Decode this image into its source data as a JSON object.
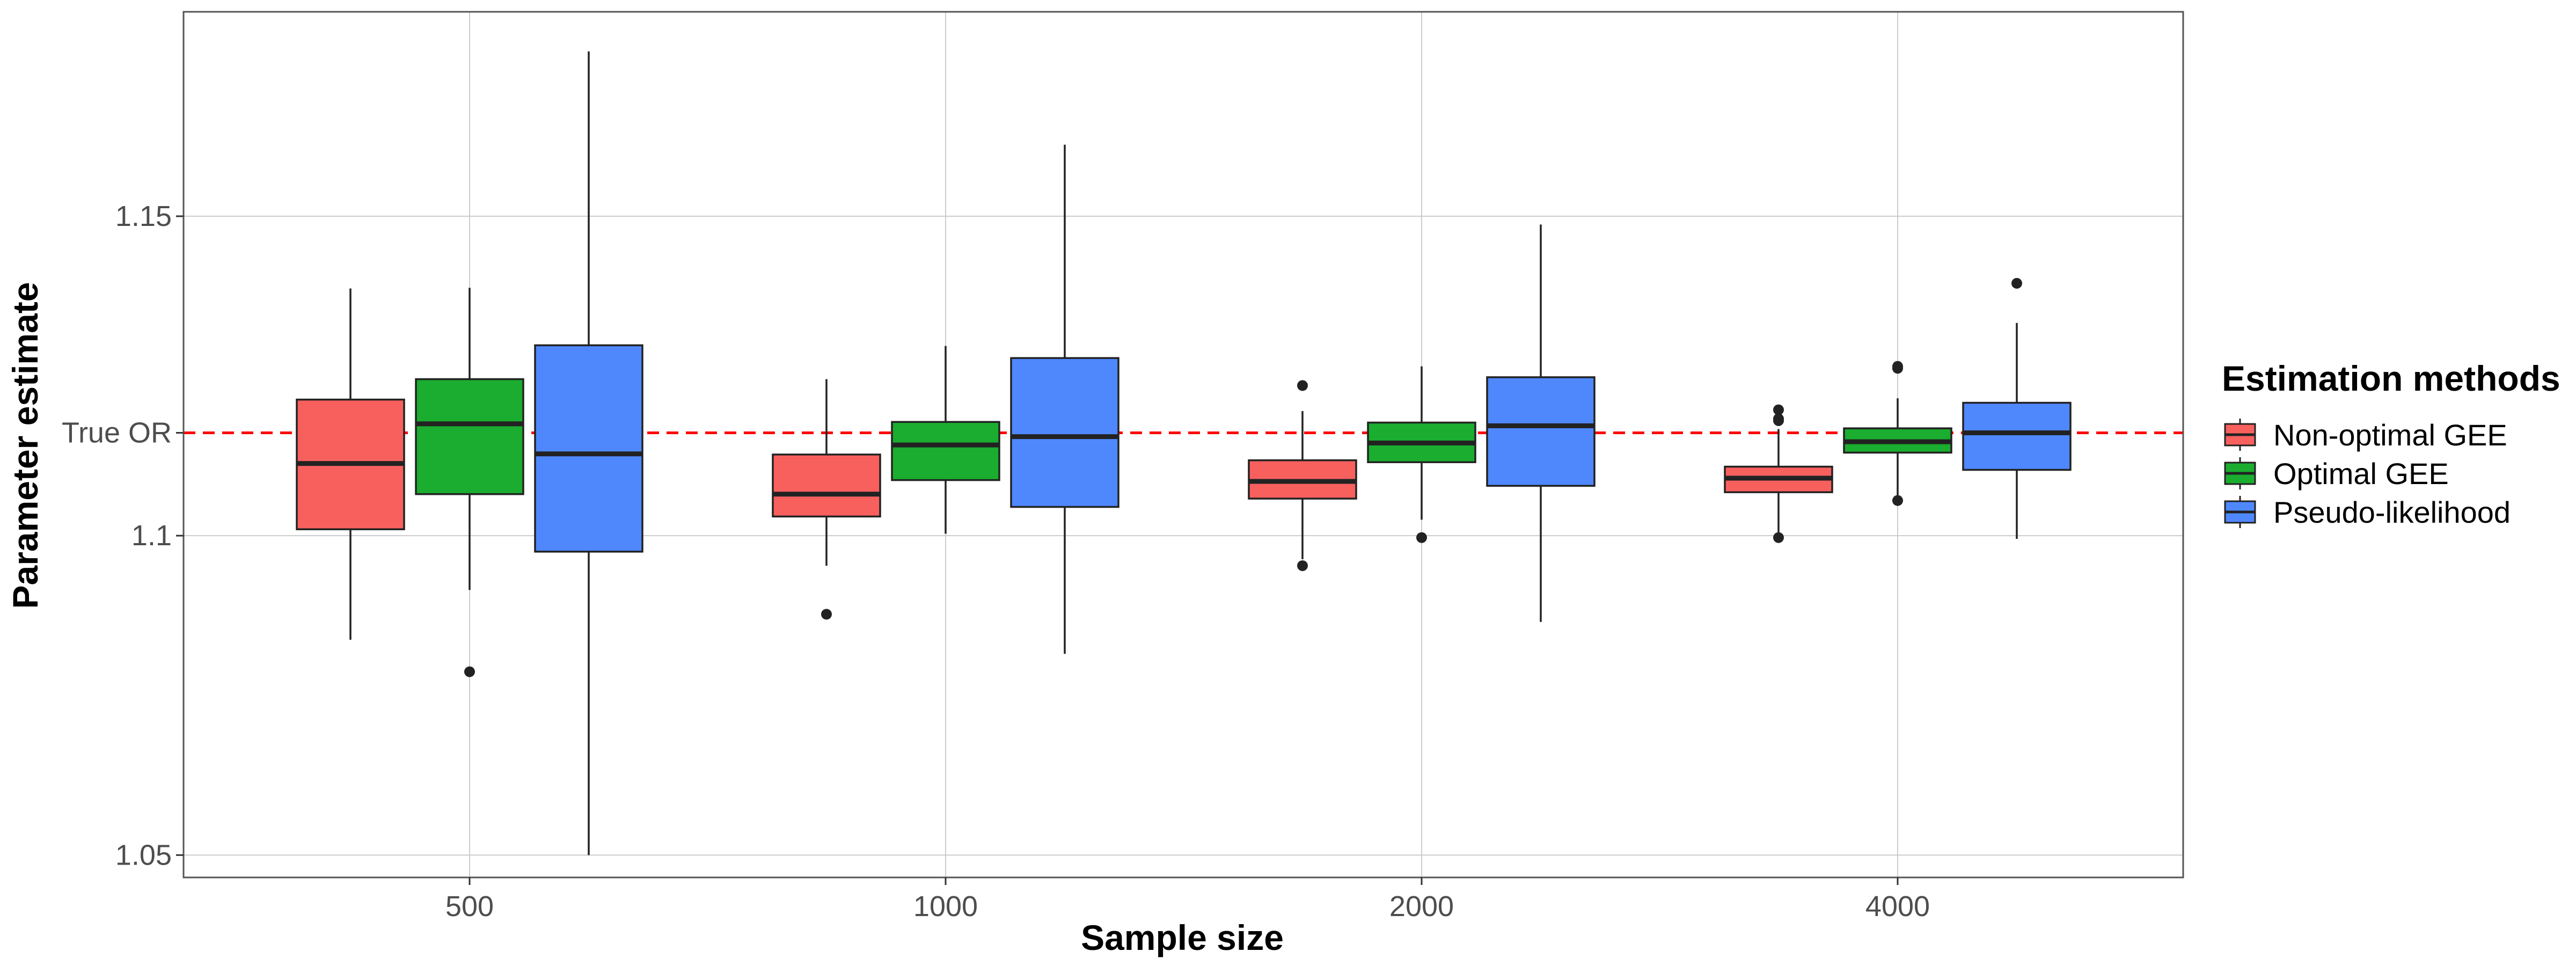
{
  "chart_data": {
    "type": "box",
    "xlabel": "Sample size",
    "ylabel": "Parameter estimate",
    "categories": [
      "500",
      "1000",
      "2000",
      "4000"
    ],
    "ylim": [
      1.0465,
      1.182
    ],
    "yticks": [
      {
        "value": 1.05,
        "label": "1.05"
      },
      {
        "value": 1.1,
        "label": "1.1"
      },
      {
        "value": 1.15,
        "label": "1.15"
      }
    ],
    "reference_line": {
      "value": 1.1161,
      "label": "True OR",
      "color": "#ff0000",
      "style": "dashed"
    },
    "grid": true,
    "legend": {
      "title": "Estimation methods",
      "position": "right"
    },
    "series": [
      {
        "name": "Non-optimal GEE",
        "color": "#f8605e",
        "boxes": [
          {
            "category": "500",
            "whisker_low": 1.0837,
            "q1": 1.101,
            "median": 1.1113,
            "q3": 1.1213,
            "whisker_high": 1.1387,
            "outliers": []
          },
          {
            "category": "1000",
            "whisker_low": 1.0953,
            "q1": 1.103,
            "median": 1.1065,
            "q3": 1.1127,
            "whisker_high": 1.1245,
            "outliers": [
              1.0877
            ]
          },
          {
            "category": "2000",
            "whisker_low": 1.0963,
            "q1": 1.1058,
            "median": 1.1085,
            "q3": 1.1118,
            "whisker_high": 1.1195,
            "outliers": [
              1.1235,
              1.0953
            ]
          },
          {
            "category": "4000",
            "whisker_low": 1.1003,
            "q1": 1.1068,
            "median": 1.109,
            "q3": 1.1108,
            "whisker_high": 1.1167,
            "outliers": [
              1.1197,
              1.1183,
              1.118,
              1.0997
            ]
          }
        ]
      },
      {
        "name": "Optimal GEE",
        "color": "#1aad2f",
        "boxes": [
          {
            "category": "500",
            "whisker_low": 1.0915,
            "q1": 1.1065,
            "median": 1.1175,
            "q3": 1.1245,
            "whisker_high": 1.1388,
            "outliers": [
              1.0787
            ]
          },
          {
            "category": "1000",
            "whisker_low": 1.1003,
            "q1": 1.1087,
            "median": 1.1142,
            "q3": 1.1178,
            "whisker_high": 1.1297,
            "outliers": []
          },
          {
            "category": "2000",
            "whisker_low": 1.1025,
            "q1": 1.1115,
            "median": 1.1145,
            "q3": 1.1177,
            "whisker_high": 1.1265,
            "outliers": [
              1.0997
            ]
          },
          {
            "category": "4000",
            "whisker_low": 1.1057,
            "q1": 1.113,
            "median": 1.1147,
            "q3": 1.1168,
            "whisker_high": 1.1215,
            "outliers": [
              1.1265,
              1.1262,
              1.1055
            ]
          }
        ]
      },
      {
        "name": "Pseudo-likelihood",
        "color": "#4f88fd",
        "boxes": [
          {
            "category": "500",
            "whisker_low": 1.05,
            "q1": 1.0975,
            "median": 1.1128,
            "q3": 1.1298,
            "whisker_high": 1.1758,
            "outliers": []
          },
          {
            "category": "1000",
            "whisker_low": 1.0815,
            "q1": 1.1045,
            "median": 1.1155,
            "q3": 1.1278,
            "whisker_high": 1.1612,
            "outliers": []
          },
          {
            "category": "2000",
            "whisker_low": 1.0865,
            "q1": 1.1078,
            "median": 1.1172,
            "q3": 1.1248,
            "whisker_high": 1.1487,
            "outliers": []
          },
          {
            "category": "4000",
            "whisker_low": 1.0995,
            "q1": 1.1103,
            "median": 1.1161,
            "q3": 1.1208,
            "whisker_high": 1.1333,
            "outliers": [
              1.1395
            ]
          }
        ]
      }
    ]
  }
}
